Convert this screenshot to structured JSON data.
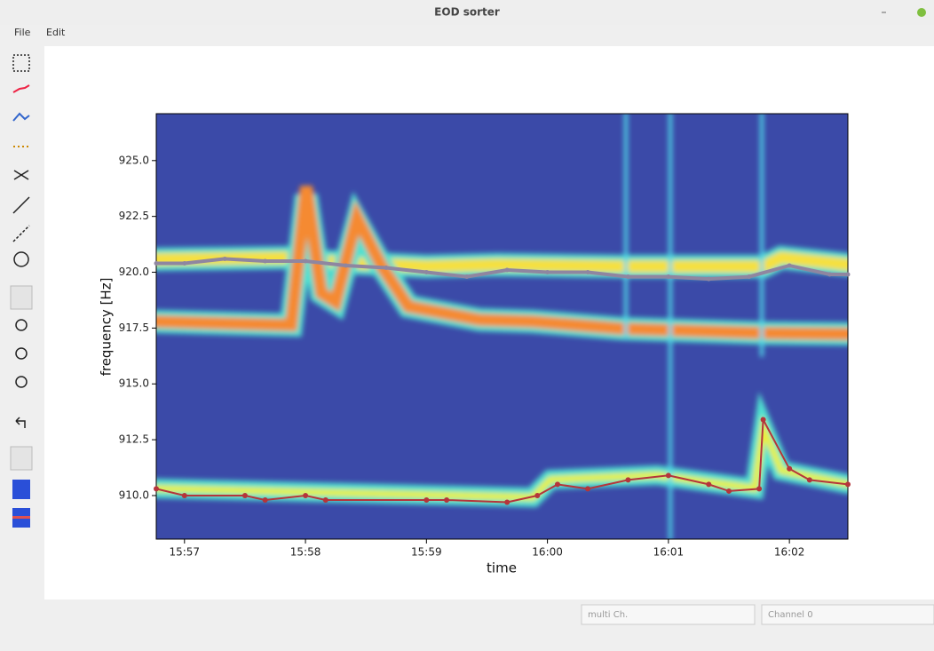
{
  "window": {
    "title": "EOD sorter"
  },
  "menu": [
    "File",
    "Edit"
  ],
  "controls": {
    "mode": "multi Ch.",
    "channel": "Channel 0"
  },
  "chart_data": {
    "type": "line",
    "xlabel": "time",
    "ylabel": "frequency [Hz]",
    "xlim": [
      "15:56:46",
      "16:02:29"
    ],
    "xticks": [
      "15:57",
      "15:58",
      "15:59",
      "16:00",
      "16:01",
      "16:02"
    ],
    "ylim": [
      908.05,
      927.1
    ],
    "yticks": [
      {
        "value": 910,
        "label": "910.0"
      },
      {
        "value": 912.5,
        "label": "912.5"
      },
      {
        "value": 915,
        "label": "915.0"
      },
      {
        "value": 917.5,
        "label": "917.5"
      },
      {
        "value": 920,
        "label": "920.0"
      },
      {
        "value": 922.5,
        "label": "922.5"
      },
      {
        "value": 925,
        "label": "925.0"
      }
    ],
    "series": [
      {
        "color": "#8f86a0",
        "x": [
          "15:56:46",
          "15:57:00",
          "15:57:20",
          "15:57:40",
          "15:58:00",
          "15:58:20",
          "15:58:40",
          "15:59:00",
          "15:59:20",
          "15:59:40",
          "16:00:00",
          "16:00:20",
          "16:00:40",
          "16:01:00",
          "16:01:20",
          "16:01:40",
          "16:02:00",
          "16:02:20",
          "16:02:29"
        ],
        "values": [
          920.4,
          920.4,
          920.6,
          920.5,
          920.5,
          920.3,
          920.2,
          920.0,
          919.8,
          920.1,
          920.0,
          920.0,
          919.8,
          919.8,
          919.7,
          919.8,
          920.3,
          919.9,
          919.9
        ]
      },
      {
        "color": "#b5353a",
        "x": [
          "15:56:46",
          "15:57:00",
          "15:57:30",
          "15:57:40",
          "15:58:00",
          "15:58:10",
          "15:59:00",
          "15:59:10",
          "15:59:40",
          "15:59:55",
          "16:00:05",
          "16:00:20",
          "16:00:40",
          "16:01:00",
          "16:01:20",
          "16:01:30",
          "16:01:45",
          "16:01:47",
          "16:02:00",
          "16:02:10",
          "16:02:29"
        ],
        "values": [
          910.3,
          910.0,
          910.0,
          909.8,
          910.0,
          909.8,
          909.8,
          909.8,
          909.7,
          910.0,
          910.5,
          910.3,
          910.7,
          910.9,
          910.5,
          910.2,
          910.3,
          913.4,
          911.2,
          910.7,
          910.5
        ]
      }
    ]
  }
}
